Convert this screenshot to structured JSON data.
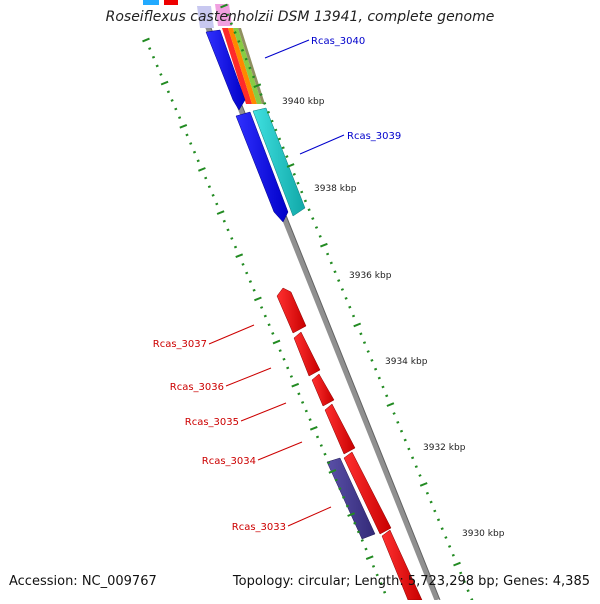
{
  "title": "Roseiflexus castenholzii DSM 13941, complete genome",
  "footer": {
    "accession": "Accession: NC_009767",
    "summary": "Topology: circular; Length: 5,723,298 bp; Genes: 4,385"
  },
  "ruler_labels": [
    "3940 kbp",
    "3938 kbp",
    "3936 kbp",
    "3934 kbp",
    "3932 kbp",
    "3930 kbp"
  ],
  "gene_labels": [
    {
      "name": "Rcas_3040",
      "color": "#0000cc"
    },
    {
      "name": "Rcas_3039",
      "color": "#0000cc"
    },
    {
      "name": "Rcas_3037",
      "color": "#cc0000"
    },
    {
      "name": "Rcas_3036",
      "color": "#cc0000"
    },
    {
      "name": "Rcas_3035",
      "color": "#cc0000"
    },
    {
      "name": "Rcas_3034",
      "color": "#cc0000"
    },
    {
      "name": "Rcas_3033",
      "color": "#cc0000"
    }
  ],
  "colors": {
    "forward_gene": "#0000ee",
    "reverse_gene": "#ee0000",
    "tick": "#228b22",
    "backbone": "#888888",
    "cyan_feature": "#20c8c8",
    "purple_feature": "#4a4090"
  }
}
